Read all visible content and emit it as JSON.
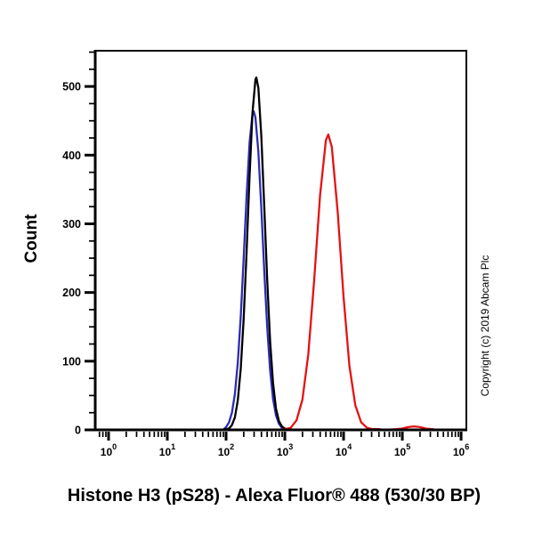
{
  "figure": {
    "title": "Histone H3 (pS28) - Alexa Fluor® 488 (530/30 BP)",
    "y_axis_title": "Count",
    "copyright": "Copyright (c) 2019 Abcam Plc",
    "background_color": "#ffffff"
  },
  "chart_data": {
    "type": "line",
    "subtype": "flow-cytometry-histogram-overlay",
    "title": "",
    "xlabel": "Histone H3 (pS28) - Alexa Fluor® 488 (530/30 BP)",
    "ylabel": "Count",
    "x_scale": "log10",
    "xlim_log": [
      -0.227,
      6.09
    ],
    "x_tick_exponents": [
      0,
      1,
      2,
      3,
      4,
      5,
      6
    ],
    "x_tick_base": "10",
    "ylim": [
      0,
      552
    ],
    "y_major_ticks": [
      0,
      100,
      200,
      300,
      400,
      500
    ],
    "y_minor_step": 25,
    "grid": false,
    "legend": null,
    "axis_color": "#000000",
    "annotations": [
      "Copyright (c) 2019 Abcam Plc"
    ],
    "series": [
      {
        "name": "blue",
        "color": "#2b2bb4",
        "peak": {
          "log_x": 2.47,
          "x_value": 295,
          "count": 464
        },
        "points": [
          [
            -0.227,
            0
          ],
          [
            1.95,
            0
          ],
          [
            2.0,
            4
          ],
          [
            2.05,
            11
          ],
          [
            2.1,
            25
          ],
          [
            2.15,
            52
          ],
          [
            2.2,
            98
          ],
          [
            2.25,
            165
          ],
          [
            2.3,
            250
          ],
          [
            2.35,
            341
          ],
          [
            2.4,
            418
          ],
          [
            2.45,
            460
          ],
          [
            2.47,
            464
          ],
          [
            2.5,
            455
          ],
          [
            2.55,
            405
          ],
          [
            2.6,
            323
          ],
          [
            2.65,
            232
          ],
          [
            2.7,
            150
          ],
          [
            2.75,
            87
          ],
          [
            2.8,
            45
          ],
          [
            2.85,
            21
          ],
          [
            2.9,
            9
          ],
          [
            2.95,
            3
          ],
          [
            3.0,
            1
          ],
          [
            3.05,
            0
          ],
          [
            6.09,
            0
          ]
        ]
      },
      {
        "name": "black",
        "color": "#000000",
        "peak": {
          "log_x": 2.515,
          "x_value": 327,
          "count": 513
        },
        "points": [
          [
            -0.227,
            0
          ],
          [
            1.9,
            0
          ],
          [
            2.0,
            1
          ],
          [
            2.05,
            2
          ],
          [
            2.1,
            7
          ],
          [
            2.15,
            18
          ],
          [
            2.2,
            43
          ],
          [
            2.25,
            89
          ],
          [
            2.3,
            162
          ],
          [
            2.35,
            260
          ],
          [
            2.4,
            369
          ],
          [
            2.45,
            462
          ],
          [
            2.5,
            510
          ],
          [
            2.515,
            513
          ],
          [
            2.55,
            498
          ],
          [
            2.6,
            428
          ],
          [
            2.65,
            326
          ],
          [
            2.7,
            219
          ],
          [
            2.75,
            129
          ],
          [
            2.8,
            68
          ],
          [
            2.85,
            31
          ],
          [
            2.9,
            13
          ],
          [
            2.95,
            5
          ],
          [
            3.0,
            2
          ],
          [
            3.1,
            0
          ],
          [
            6.09,
            0
          ]
        ]
      },
      {
        "name": "red",
        "color": "#e51212",
        "peak": {
          "log_x": 3.74,
          "x_value": 5500,
          "count": 430
        },
        "points": [
          [
            -0.227,
            0
          ],
          [
            2.9,
            0
          ],
          [
            3.0,
            1
          ],
          [
            3.1,
            3
          ],
          [
            3.2,
            14
          ],
          [
            3.3,
            44
          ],
          [
            3.4,
            110
          ],
          [
            3.5,
            218
          ],
          [
            3.6,
            341
          ],
          [
            3.7,
            422
          ],
          [
            3.74,
            430
          ],
          [
            3.8,
            412
          ],
          [
            3.9,
            318
          ],
          [
            4.0,
            194
          ],
          [
            4.1,
            93
          ],
          [
            4.2,
            36
          ],
          [
            4.3,
            11
          ],
          [
            4.4,
            3
          ],
          [
            4.5,
            1
          ],
          [
            4.6,
            1
          ],
          [
            4.7,
            0
          ],
          [
            4.9,
            1
          ],
          [
            5.0,
            2
          ],
          [
            5.1,
            4
          ],
          [
            5.2,
            5
          ],
          [
            5.3,
            4
          ],
          [
            5.4,
            2
          ],
          [
            5.5,
            1
          ],
          [
            5.6,
            0
          ],
          [
            6.09,
            0
          ]
        ]
      }
    ]
  }
}
